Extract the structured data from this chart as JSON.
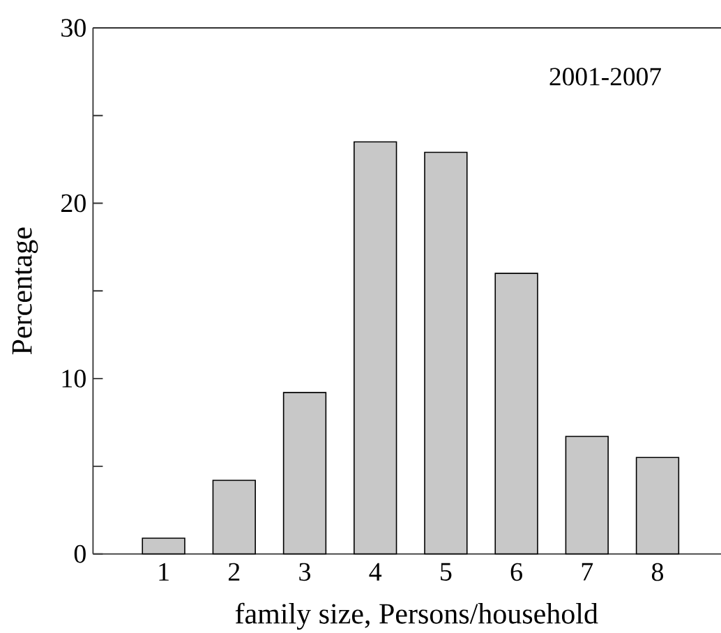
{
  "chart_data": {
    "type": "bar",
    "xlabel": "family size, Persons/household",
    "ylabel": "Percentage",
    "annotations": [
      "2001-2007"
    ],
    "categories": [
      "1",
      "2",
      "3",
      "4",
      "5",
      "6",
      "7",
      "8"
    ],
    "values": [
      0.9,
      4.2,
      9.2,
      23.5,
      22.9,
      16.0,
      6.7,
      5.5
    ],
    "color": "#c8c8c8",
    "ylim": [
      0,
      30
    ],
    "yticks": [
      0,
      {
        "value": 5,
        "label": null
      },
      10,
      {
        "value": 15,
        "label": null
      },
      20,
      {
        "value": 25,
        "label": null
      },
      30
    ]
  }
}
